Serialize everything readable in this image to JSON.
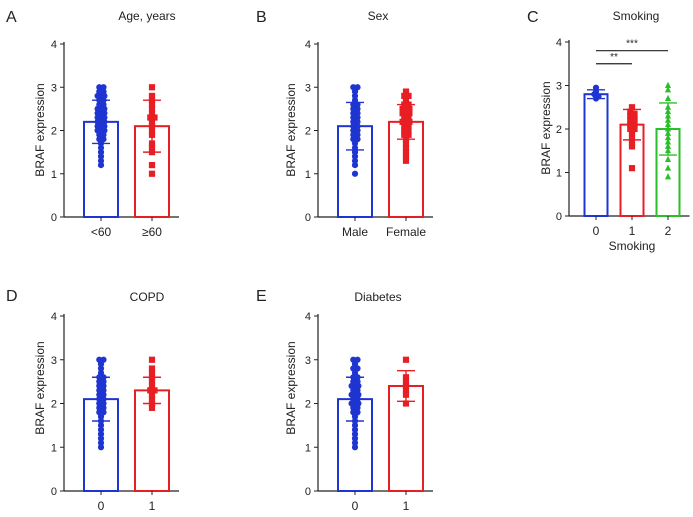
{
  "figure": {
    "colors": {
      "g0": "#1f35d1",
      "g1": "#e81e25",
      "g2": "#2bbf2b",
      "axis": "#222222"
    }
  },
  "chart_data": [
    {
      "panel": "A",
      "type": "bar",
      "title": "Age, years",
      "xlabel": "",
      "ylabel": "BRAF expression",
      "ylim": [
        0,
        4
      ],
      "yticks": [
        "0",
        "1",
        "2",
        "3",
        "4"
      ],
      "categories": [
        "<60",
        "≥60"
      ],
      "means": [
        2.2,
        2.1
      ],
      "sd": [
        0.5,
        0.6
      ],
      "markers": [
        "circle",
        "square"
      ],
      "colorKeys": [
        "g0",
        "g1"
      ],
      "points": [
        [
          3.0,
          3.0,
          2.9,
          2.9,
          2.8,
          2.8,
          2.8,
          2.7,
          2.7,
          2.6,
          2.6,
          2.5,
          2.5,
          2.5,
          2.4,
          2.4,
          2.4,
          2.3,
          2.3,
          2.3,
          2.2,
          2.2,
          2.2,
          2.1,
          2.1,
          2.1,
          2.0,
          2.0,
          2.0,
          1.9,
          1.9,
          1.8,
          1.8,
          1.7,
          1.6,
          1.5,
          1.4,
          1.3,
          1.2
        ],
        [
          3.0,
          2.8,
          2.7,
          2.6,
          2.5,
          2.4,
          2.3,
          2.3,
          2.2,
          2.1,
          2.0,
          1.9,
          1.7,
          1.6,
          1.5,
          1.2,
          1.0
        ]
      ],
      "significance": []
    },
    {
      "panel": "B",
      "type": "bar",
      "title": "Sex",
      "xlabel": "",
      "ylabel": "BRAF expression",
      "ylim": [
        0,
        4
      ],
      "yticks": [
        "0",
        "1",
        "2",
        "3",
        "4"
      ],
      "categories": [
        "Male",
        "Female"
      ],
      "means": [
        2.1,
        2.2
      ],
      "sd": [
        0.55,
        0.4
      ],
      "markers": [
        "circle",
        "square"
      ],
      "colorKeys": [
        "g0",
        "g1"
      ],
      "points": [
        [
          3.0,
          3.0,
          2.9,
          2.8,
          2.7,
          2.6,
          2.6,
          2.5,
          2.5,
          2.4,
          2.4,
          2.3,
          2.3,
          2.2,
          2.2,
          2.1,
          2.1,
          2.0,
          2.0,
          1.9,
          1.9,
          1.8,
          1.8,
          1.7,
          1.6,
          1.5,
          1.4,
          1.3,
          1.2,
          1.0
        ],
        [
          2.9,
          2.8,
          2.8,
          2.7,
          2.6,
          2.6,
          2.5,
          2.5,
          2.5,
          2.4,
          2.4,
          2.4,
          2.3,
          2.3,
          2.2,
          2.2,
          2.2,
          2.1,
          2.1,
          2.0,
          2.0,
          1.9,
          1.9,
          1.8,
          1.7,
          1.6,
          1.5,
          1.4,
          1.3
        ]
      ],
      "significance": []
    },
    {
      "panel": "C",
      "type": "bar",
      "title": "Smoking",
      "xlabel": "Smoking",
      "ylabel": "BRAF expression",
      "ylim": [
        0,
        4
      ],
      "yticks": [
        "0",
        "1",
        "2",
        "3",
        "4"
      ],
      "categories": [
        "0",
        "1",
        "2"
      ],
      "means": [
        2.8,
        2.1,
        2.0
      ],
      "sd": [
        0.1,
        0.35,
        0.6
      ],
      "markers": [
        "circle",
        "square",
        "triangle"
      ],
      "colorKeys": [
        "g0",
        "g1",
        "g2"
      ],
      "points": [
        [
          2.95,
          2.85,
          2.8,
          2.75,
          2.7
        ],
        [
          2.5,
          2.4,
          2.35,
          2.3,
          2.25,
          2.2,
          2.2,
          2.1,
          2.1,
          2.0,
          2.0,
          1.9,
          1.8,
          1.7,
          1.6,
          1.1
        ],
        [
          3.0,
          2.9,
          2.7,
          2.5,
          2.4,
          2.3,
          2.2,
          2.1,
          2.0,
          1.9,
          1.8,
          1.7,
          1.6,
          1.5,
          1.3,
          1.1,
          0.9
        ]
      ],
      "significance": [
        {
          "from": 0,
          "to": 2,
          "label": "***",
          "y": 3.8
        },
        {
          "from": 0,
          "to": 1,
          "label": "**",
          "y": 3.5
        }
      ]
    },
    {
      "panel": "D",
      "type": "bar",
      "title": "COPD",
      "xlabel": "",
      "ylabel": "BRAF expression",
      "ylim": [
        0,
        4
      ],
      "yticks": [
        "0",
        "1",
        "2",
        "3",
        "4"
      ],
      "categories": [
        "0",
        "1"
      ],
      "means": [
        2.1,
        2.3
      ],
      "sd": [
        0.5,
        0.3
      ],
      "markers": [
        "circle",
        "square"
      ],
      "colorKeys": [
        "g0",
        "g1"
      ],
      "points": [
        [
          3.0,
          3.0,
          2.9,
          2.8,
          2.7,
          2.6,
          2.6,
          2.5,
          2.5,
          2.4,
          2.4,
          2.3,
          2.3,
          2.2,
          2.2,
          2.1,
          2.1,
          2.0,
          2.0,
          1.9,
          1.9,
          1.8,
          1.8,
          1.7,
          1.6,
          1.5,
          1.4,
          1.3,
          1.2,
          1.1,
          1.0
        ],
        [
          3.0,
          2.8,
          2.7,
          2.6,
          2.5,
          2.4,
          2.3,
          2.3,
          2.2,
          2.1,
          2.0,
          1.9
        ]
      ],
      "significance": []
    },
    {
      "panel": "E",
      "type": "bar",
      "title": "Diabetes",
      "xlabel": "",
      "ylabel": "BRAF expression",
      "ylim": [
        0,
        4
      ],
      "yticks": [
        "0",
        "1",
        "2",
        "3",
        "4"
      ],
      "categories": [
        "0",
        "1"
      ],
      "means": [
        2.1,
        2.4
      ],
      "sd": [
        0.5,
        0.35
      ],
      "markers": [
        "circle",
        "square"
      ],
      "colorKeys": [
        "g0",
        "g1"
      ],
      "points": [
        [
          3.0,
          3.0,
          2.9,
          2.8,
          2.8,
          2.7,
          2.6,
          2.6,
          2.5,
          2.5,
          2.4,
          2.4,
          2.4,
          2.3,
          2.3,
          2.2,
          2.2,
          2.2,
          2.1,
          2.1,
          2.0,
          2.0,
          2.0,
          1.9,
          1.9,
          1.8,
          1.8,
          1.7,
          1.6,
          1.5,
          1.4,
          1.3,
          1.2,
          1.1,
          1.0
        ],
        [
          3.0,
          2.6,
          2.5,
          2.4,
          2.3,
          2.2,
          2.0
        ]
      ],
      "significance": []
    }
  ]
}
